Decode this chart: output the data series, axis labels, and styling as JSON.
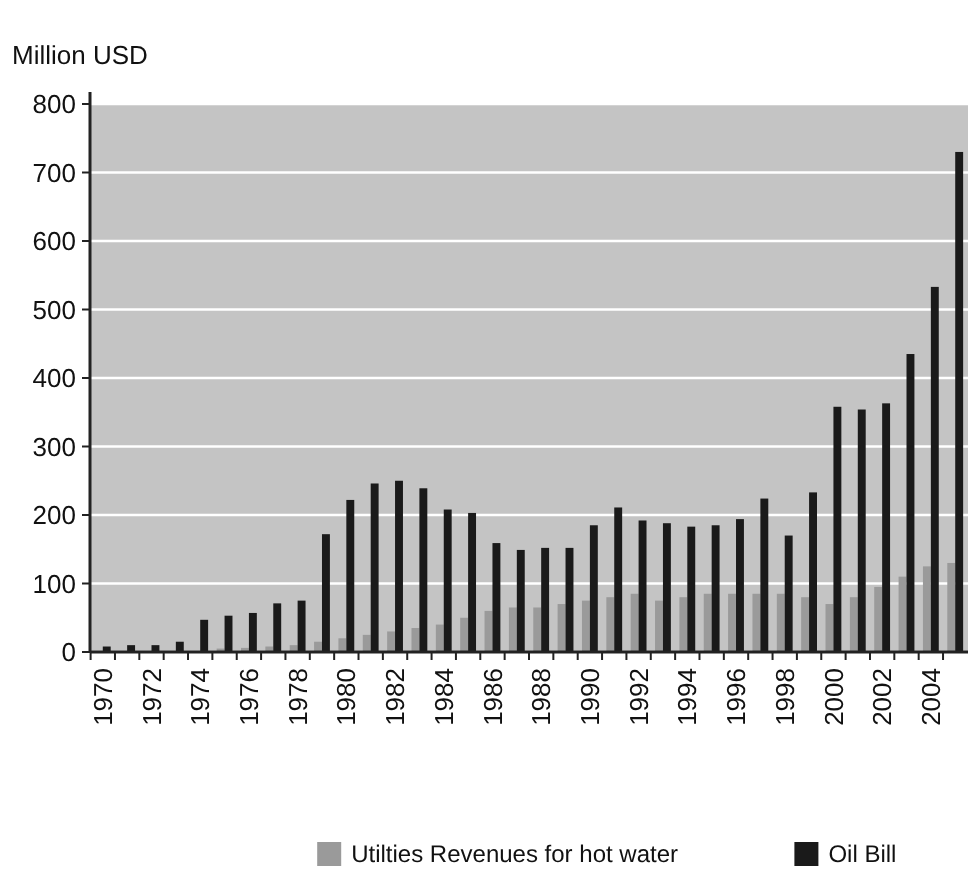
{
  "chart_data": {
    "type": "bar",
    "ylabel": "Million USD",
    "categories": [
      "1970",
      null,
      "1972",
      null,
      "1974",
      null,
      "1976",
      null,
      "1978",
      null,
      "1980",
      null,
      "1982",
      null,
      "1984",
      null,
      "1986",
      null,
      "1988",
      null,
      "1990",
      null,
      "1992",
      null,
      "1994",
      null,
      "1996",
      null,
      "1998",
      null,
      "2000",
      null,
      "2002",
      null,
      "2004",
      null
    ],
    "series": [
      {
        "name": "Utilties Revenues for hot water",
        "color": "#9a9a9a",
        "values": [
          null,
          null,
          null,
          null,
          null,
          5,
          6,
          8,
          10,
          15,
          20,
          25,
          30,
          35,
          40,
          50,
          60,
          65,
          65,
          70,
          75,
          80,
          85,
          75,
          80,
          85,
          85,
          85,
          85,
          80,
          70,
          80,
          95,
          110,
          125,
          130
        ]
      },
      {
        "name": "Oil Bill",
        "color": "#1a1a1a",
        "values": [
          8,
          10,
          10,
          15,
          47,
          53,
          57,
          71,
          75,
          172,
          222,
          246,
          250,
          239,
          208,
          203,
          159,
          149,
          152,
          152,
          185,
          211,
          192,
          188,
          183,
          185,
          194,
          224,
          170,
          233,
          358,
          354,
          363,
          435,
          533,
          730
        ]
      }
    ],
    "ylim": [
      0,
      800
    ],
    "yticks": [
      0,
      100,
      200,
      300,
      400,
      500,
      600,
      700,
      800
    ],
    "grid": "y",
    "legend": "bottom right"
  }
}
